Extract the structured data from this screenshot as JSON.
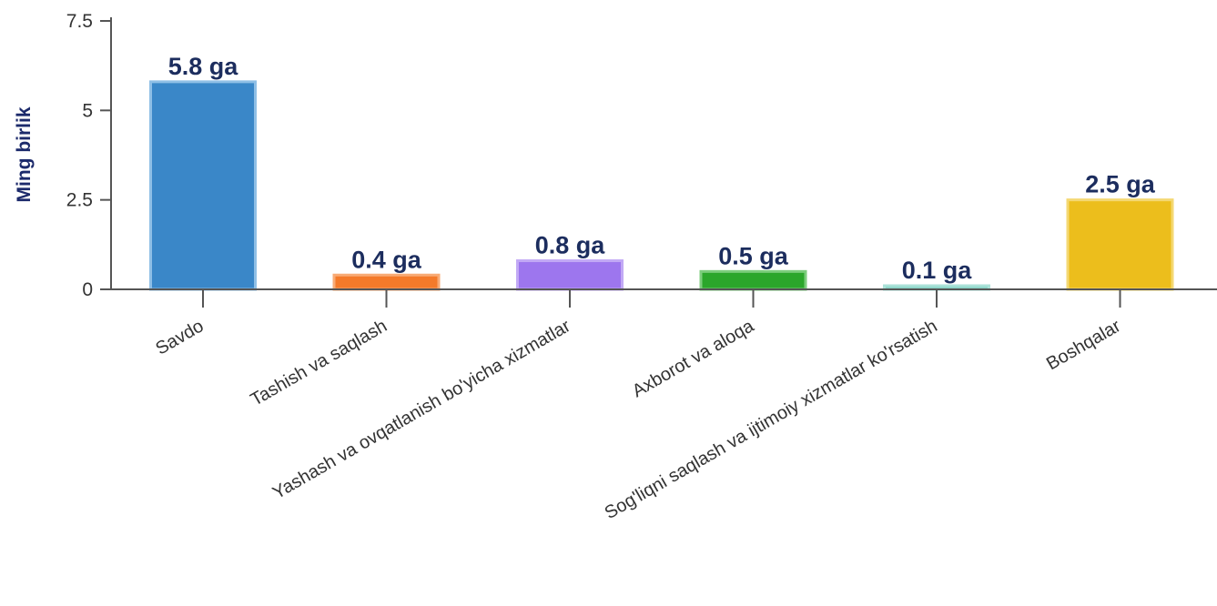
{
  "chart_data": {
    "type": "bar",
    "title": "",
    "xlabel": "",
    "ylabel": "Ming birlik",
    "ylim": [
      0,
      7.5
    ],
    "yticks": [
      0,
      2.5,
      5,
      7.5
    ],
    "ytick_labels": [
      "0",
      "2.5",
      "5",
      "7.5"
    ],
    "grid": false,
    "legend": "none",
    "categories": [
      "Savdo",
      "Tashish va saqlash",
      "Yashash va ovqatlanish bo'yicha xizmatlar",
      "Axborot va aloqa",
      "Sog'liqni saqlash va ijtimoiy xizmatlar ko'rsatish",
      "Boshqalar"
    ],
    "values": [
      5.8,
      0.4,
      0.8,
      0.5,
      0.1,
      2.5
    ],
    "data_labels": [
      "5.8 ga",
      "0.4 ga",
      "0.8 ga",
      "0.5 ga",
      "0.1 ga",
      "2.5 ga"
    ],
    "colors": [
      "#3a87c8",
      "#f47a2a",
      "#9d76ee",
      "#2ba62b",
      "#76cbbd",
      "#ecbe1c"
    ],
    "border_colors": [
      "#8fbfe6",
      "#f8ab76",
      "#c2a9f5",
      "#7ccd7c",
      "#abe2d8",
      "#f4d872"
    ]
  }
}
